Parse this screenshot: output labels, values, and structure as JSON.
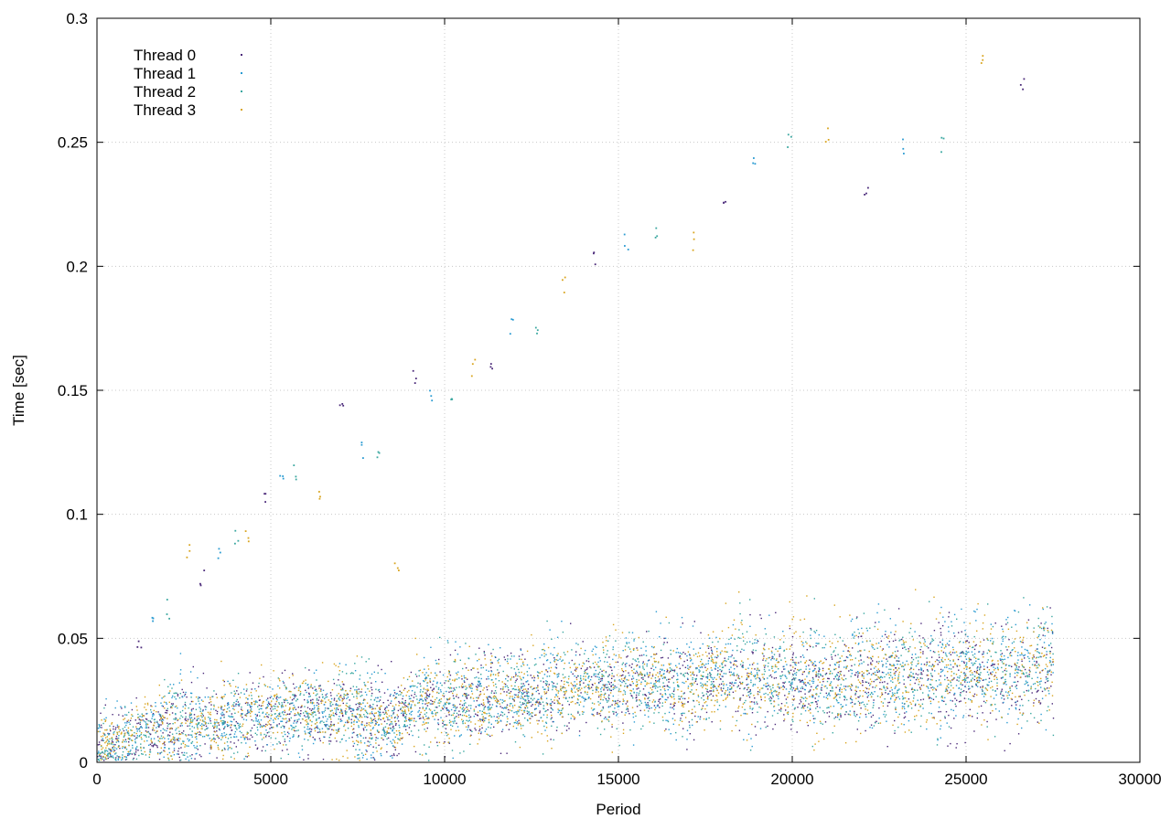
{
  "chart_data": {
    "type": "scatter",
    "title": "",
    "xlabel": "Period",
    "ylabel": "Time [sec]",
    "xlim": [
      0,
      30000
    ],
    "ylim": [
      0,
      0.3
    ],
    "xticks": [
      0,
      5000,
      10000,
      15000,
      20000,
      25000,
      30000
    ],
    "xtick_labels": [
      "0",
      "5000",
      "10000",
      "15000",
      "20000",
      "25000",
      "30000"
    ],
    "yticks": [
      0,
      0.05,
      0.1,
      0.15,
      0.2,
      0.25,
      0.3
    ],
    "ytick_labels": [
      "0",
      "0.05",
      "0.1",
      "0.15",
      "0.2",
      "0.25",
      "0.3"
    ],
    "grid": true,
    "legend_position": "top-left",
    "series": [
      {
        "name": "Thread 0",
        "color": "#4b2a7a",
        "x": [
          0,
          1000,
          2000,
          3000,
          4000,
          5000,
          6000,
          7000,
          8000,
          8500,
          9000,
          10000,
          11000,
          12000,
          13000,
          14000,
          15000,
          16000,
          17000,
          18000,
          19000,
          20000,
          21000,
          22000,
          23000,
          24000,
          25000,
          26000,
          27000,
          27500
        ],
        "y": [
          0.005,
          0.011,
          0.014,
          0.016,
          0.017,
          0.019,
          0.02,
          0.021,
          0.018,
          0.016,
          0.022,
          0.024,
          0.025,
          0.027,
          0.028,
          0.03,
          0.031,
          0.032,
          0.03,
          0.034,
          0.033,
          0.034,
          0.032,
          0.035,
          0.034,
          0.036,
          0.036,
          0.035,
          0.037,
          0.04
        ]
      },
      {
        "name": "Thread 1",
        "color": "#2a9bd2",
        "x": [
          0,
          1000,
          2000,
          3000,
          4000,
          5000,
          6000,
          7000,
          8000,
          8500,
          9000,
          10000,
          11000,
          12000,
          13000,
          14000,
          15000,
          16000,
          17000,
          18000,
          19000,
          20000,
          21000,
          22000,
          23000,
          24000,
          25000,
          26000,
          27000,
          27500
        ],
        "y": [
          0.006,
          0.012,
          0.015,
          0.017,
          0.018,
          0.02,
          0.021,
          0.022,
          0.019,
          0.017,
          0.024,
          0.026,
          0.026,
          0.028,
          0.03,
          0.032,
          0.033,
          0.034,
          0.032,
          0.036,
          0.036,
          0.036,
          0.034,
          0.037,
          0.036,
          0.038,
          0.039,
          0.037,
          0.039,
          0.041
        ]
      },
      {
        "name": "Thread 2",
        "color": "#3aa7a0",
        "x": [
          0,
          1000,
          2000,
          3000,
          4000,
          5000,
          6000,
          7000,
          8000,
          8500,
          9000,
          10000,
          11000,
          12000,
          13000,
          14000,
          15000,
          16000,
          17000,
          18000,
          19000,
          20000,
          21000,
          22000,
          23000,
          24000,
          25000,
          26000,
          27000,
          27500
        ],
        "y": [
          0.005,
          0.011,
          0.014,
          0.016,
          0.017,
          0.019,
          0.02,
          0.021,
          0.018,
          0.016,
          0.023,
          0.025,
          0.025,
          0.027,
          0.029,
          0.031,
          0.032,
          0.033,
          0.031,
          0.035,
          0.034,
          0.035,
          0.033,
          0.036,
          0.035,
          0.037,
          0.038,
          0.036,
          0.038,
          0.04
        ]
      },
      {
        "name": "Thread 3",
        "color": "#d9a520",
        "x": [
          0,
          1000,
          2000,
          3000,
          4000,
          5000,
          6000,
          7000,
          8000,
          8500,
          9000,
          10000,
          11000,
          12000,
          13000,
          14000,
          15000,
          16000,
          17000,
          18000,
          19000,
          20000,
          21000,
          22000,
          23000,
          24000,
          25000,
          26000,
          27000,
          27500
        ],
        "y": [
          0.006,
          0.012,
          0.015,
          0.017,
          0.018,
          0.02,
          0.02,
          0.021,
          0.017,
          0.015,
          0.023,
          0.025,
          0.026,
          0.028,
          0.029,
          0.031,
          0.032,
          0.033,
          0.031,
          0.035,
          0.035,
          0.035,
          0.033,
          0.036,
          0.035,
          0.037,
          0.038,
          0.036,
          0.039,
          0.041
        ]
      }
    ],
    "outliers": {
      "x": [
        1200,
        1600,
        2000,
        2600,
        3000,
        3500,
        4000,
        4300,
        4800,
        5300,
        5700,
        6400,
        7000,
        7600,
        8100,
        8600,
        9100,
        9600,
        10200,
        10800,
        11300,
        11900,
        12600,
        13400,
        14300,
        15200,
        16100,
        17100,
        18000,
        18900,
        19900,
        21000,
        22100,
        23200,
        24300,
        25400,
        26600
      ],
      "y": [
        0.048,
        0.055,
        0.062,
        0.085,
        0.075,
        0.086,
        0.09,
        0.093,
        0.105,
        0.115,
        0.118,
        0.108,
        0.147,
        0.126,
        0.127,
        0.081,
        0.157,
        0.148,
        0.15,
        0.16,
        0.158,
        0.177,
        0.176,
        0.192,
        0.203,
        0.21,
        0.215,
        0.21,
        0.226,
        0.241,
        0.252,
        0.253,
        0.23,
        0.248,
        0.25,
        0.286,
        0.274
      ]
    }
  }
}
